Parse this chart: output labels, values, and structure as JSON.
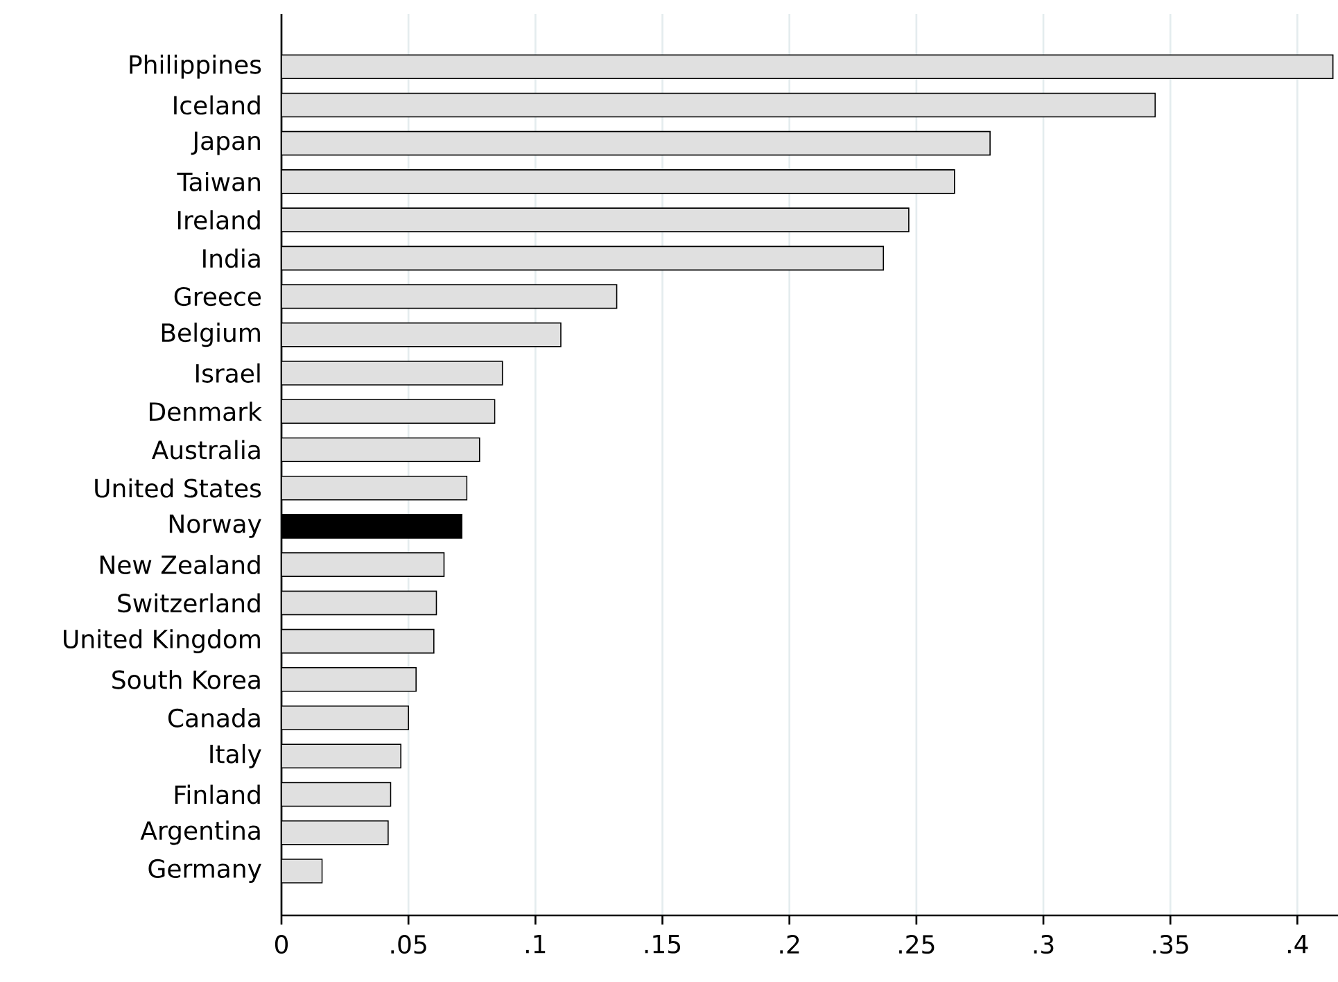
{
  "chart_data": {
    "type": "bar",
    "orientation": "horizontal",
    "categories": [
      "Philippines",
      "Iceland",
      "Japan",
      "Taiwan",
      "Ireland",
      "India",
      "Greece",
      "Belgium",
      "Israel",
      "Denmark",
      "Australia",
      "United States",
      "Norway",
      "New Zealand",
      "Switzerland",
      "United Kingdom",
      "South Korea",
      "Canada",
      "Italy",
      "Finland",
      "Argentina",
      "Germany"
    ],
    "values": [
      0.414,
      0.344,
      0.279,
      0.265,
      0.247,
      0.237,
      0.132,
      0.11,
      0.087,
      0.084,
      0.078,
      0.073,
      0.071,
      0.064,
      0.061,
      0.06,
      0.053,
      0.05,
      0.047,
      0.043,
      0.042,
      0.016
    ],
    "colors": [
      "#e0e0e0",
      "#e0e0e0",
      "#e0e0e0",
      "#e0e0e0",
      "#e0e0e0",
      "#e0e0e0",
      "#e0e0e0",
      "#e0e0e0",
      "#e0e0e0",
      "#e0e0e0",
      "#e0e0e0",
      "#e0e0e0",
      "#000000",
      "#e0e0e0",
      "#e0e0e0",
      "#e0e0e0",
      "#e0e0e0",
      "#e0e0e0",
      "#e0e0e0",
      "#e0e0e0",
      "#e0e0e0",
      "#e0e0e0"
    ],
    "xlim": [
      0,
      0.416
    ],
    "xticks": [
      0,
      {
        "value": 0.05,
        "label": ".05"
      },
      {
        "value": 0.1,
        "label": ".1"
      },
      {
        "value": 0.15,
        "label": ".15"
      },
      {
        "value": 0.2,
        "label": ".2"
      },
      {
        "value": 0.25,
        "label": ".25"
      },
      {
        "value": 0.3,
        "label": ".3"
      },
      {
        "value": 0.35,
        "label": ".35"
      },
      {
        "value": 0.4,
        "label": ".4"
      }
    ],
    "grid": "x"
  }
}
